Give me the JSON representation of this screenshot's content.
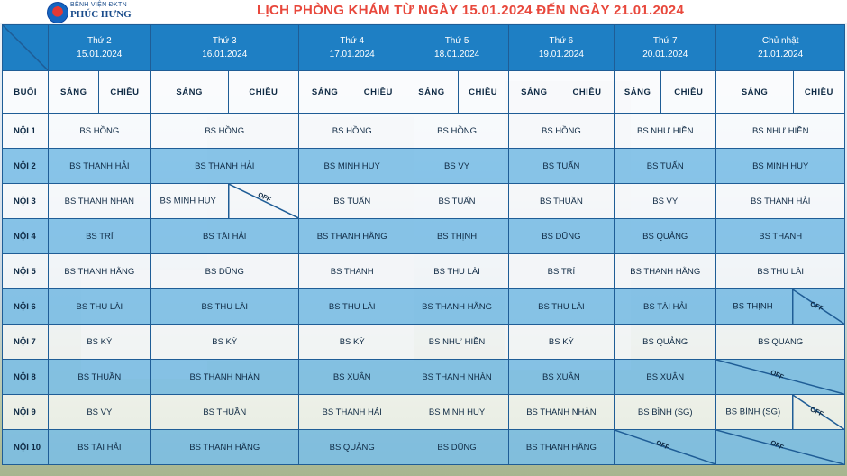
{
  "header": {
    "logo_line1": "BỆNH VIỆN ĐKTN",
    "logo_line2": "PHÚC HƯNG",
    "title": "LỊCH PHÒNG KHÁM TỪ NGÀY 15.01.2024 ĐẾN NGÀY 21.01.2024"
  },
  "days": [
    {
      "name": "Thứ 2",
      "date": "15.01.2024"
    },
    {
      "name": "Thứ 3",
      "date": "16.01.2024"
    },
    {
      "name": "Thứ 4",
      "date": "17.01.2024"
    },
    {
      "name": "Thứ 5",
      "date": "18.01.2024"
    },
    {
      "name": "Thứ 6",
      "date": "19.01.2024"
    },
    {
      "name": "Thứ 7",
      "date": "20.01.2024"
    },
    {
      "name": "Chủ nhật",
      "date": "21.01.2024"
    }
  ],
  "labels": {
    "buoi": "BUỔI",
    "sang": "SÁNG",
    "chieu": "CHIỀU",
    "off": "OFF"
  },
  "rows": [
    {
      "label": "NỘI 1",
      "cells": [
        "BS HỒNG",
        "BS HỒNG",
        "BS HỒNG",
        "BS HỒNG",
        "BS HỒNG",
        "BS NHƯ HIỀN",
        "BS NHƯ HIỀN"
      ]
    },
    {
      "label": "NỘI 2",
      "cells": [
        "BS THANH HẢI",
        "BS THANH HẢI",
        "BS MINH HUY",
        "BS VY",
        "BS TUẤN",
        "BS TUẤN",
        "BS MINH HUY"
      ]
    },
    {
      "label": "NỘI 3",
      "cells": [
        "BS THANH NHÀN",
        "BS MINH HUY",
        "BS TUẤN",
        "BS TUẤN",
        "BS THUẦN",
        "BS VY",
        "BS THANH HẢI"
      ]
    },
    {
      "label": "NỘI 4",
      "cells": [
        "BS TRÍ",
        "BS TÀI HẢI",
        "BS THANH HẰNG",
        "BS THỊNH",
        "BS DŨNG",
        "BS QUẢNG",
        "BS THANH"
      ]
    },
    {
      "label": "NỘI 5",
      "cells": [
        "BS THANH HẰNG",
        "BS DŨNG",
        "BS THANH",
        "BS THU LÀI",
        "BS TRÍ",
        "BS THANH HẰNG",
        "BS THU LÀI"
      ]
    },
    {
      "label": "NỘI 6",
      "cells": [
        "BS THU LÀI",
        "BS THU LÀI",
        "BS THU LÀI",
        "BS THANH HẰNG",
        "BS THU LÀI",
        "BS TÀI HẢI",
        "BS THỊNH"
      ]
    },
    {
      "label": "NỘI 7",
      "cells": [
        "BS KỲ",
        "BS KỲ",
        "BS KỲ",
        "BS NHƯ HIỀN",
        "BS KỲ",
        "BS QUẢNG",
        "BS QUANG"
      ]
    },
    {
      "label": "NỘI 8",
      "cells": [
        "BS THUẦN",
        "BS THANH NHÀN",
        "BS XUÂN",
        "BS THANH NHÀN",
        "BS XUÂN",
        "BS XUÂN",
        ""
      ]
    },
    {
      "label": "NỘI 9",
      "cells": [
        "BS VY",
        "BS THUẦN",
        "BS THANH HẢI",
        "BS MINH HUY",
        "BS THANH NHÀN",
        "BS BÌNH (SG)",
        "BS BÌNH (SG)"
      ]
    },
    {
      "label": "NỘI 10",
      "cells": [
        "BS TÀI HẢI",
        "BS THANH HẰNG",
        "BS QUẢNG",
        "BS DŨNG",
        "BS THANH HẰNG",
        "",
        ""
      ]
    }
  ]
}
